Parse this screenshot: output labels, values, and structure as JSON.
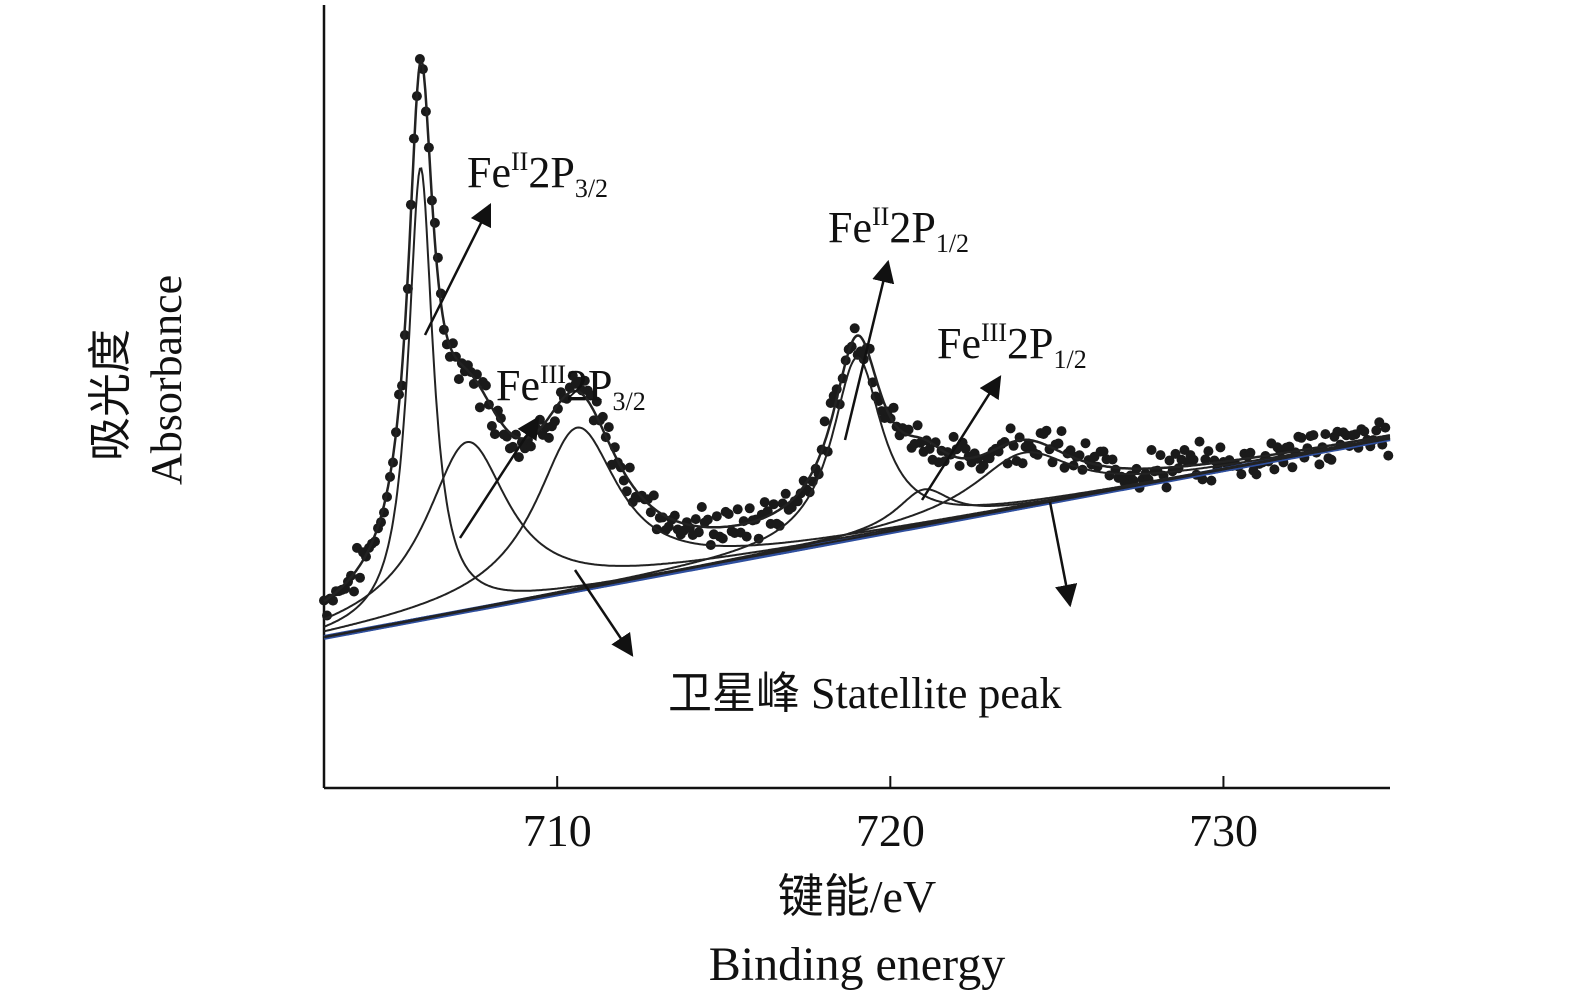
{
  "chart_data": {
    "type": "scatter",
    "title": "",
    "xlabel_cn": "键能/eV",
    "xlabel_en": "Binding energy",
    "ylabel_cn": "吸光度",
    "ylabel_en": "Absorbance",
    "xlim": [
      703,
      735
    ],
    "ylim": [
      -0.25,
      1.05
    ],
    "xticks": [
      710,
      720,
      730
    ],
    "y_tick_labels": "none",
    "grid": false,
    "legend": "none",
    "colors": {
      "data": "#1a1a1a",
      "fit": "#222222",
      "baseline": "#2f4f9e"
    },
    "baseline": {
      "x": [
        703,
        735
      ],
      "y": [
        0.0,
        0.33
      ]
    },
    "peaks": [
      {
        "label": "Fe",
        "sup": "II",
        "main": "2P",
        "sub": "3/2",
        "center": 705.9,
        "height": 0.75,
        "width": 0.45
      },
      {
        "label": "Fe",
        "sup": "III",
        "main": "2P",
        "sub": "3/2",
        "center": 707.3,
        "height": 0.28,
        "width": 1.5
      },
      {
        "label": "Fe",
        "sup": "II",
        "main": "2P",
        "sub": "1/2",
        "center": 719.0,
        "height": 0.3,
        "width": 0.9
      },
      {
        "label": "Fe",
        "sup": "III",
        "main": "2P",
        "sub": "1/2",
        "center": 721.0,
        "height": 0.06,
        "width": 1.0
      }
    ],
    "satellites": [
      {
        "center": 710.6,
        "height": 0.27,
        "width": 1.5
      },
      {
        "center": 724.0,
        "height": 0.09,
        "width": 1.8
      }
    ],
    "satellite_label": "卫星峰 Statellite peak"
  }
}
